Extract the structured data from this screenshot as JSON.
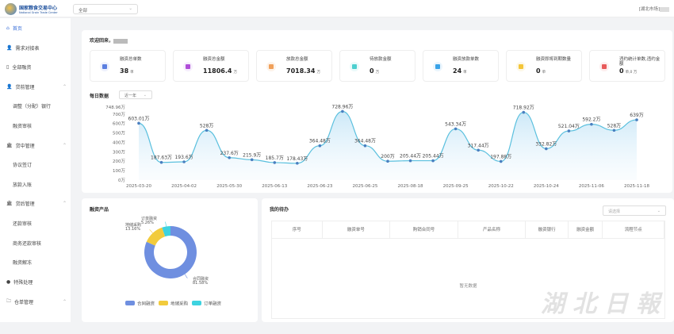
{
  "header": {
    "logo_cn": "国家粮食交易中心",
    "logo_en": "National Grain Trade Center",
    "select_value": "全部",
    "user": "[湖北市场]"
  },
  "sidebar": {
    "items": [
      {
        "label": "首页",
        "icon": "home-icon",
        "active": true
      },
      {
        "label": "需求对接表",
        "icon": "user-icon"
      },
      {
        "label": "全部融资",
        "icon": "doc-icon"
      },
      {
        "label": "贷前管理",
        "icon": "user-icon",
        "expand": true
      },
      {
        "label": "调整（分配）银行",
        "sub": true
      },
      {
        "label": "融资审核",
        "sub": true
      },
      {
        "label": "贷中管理",
        "icon": "bank-icon",
        "expand": true
      },
      {
        "label": "协议签订",
        "sub": true
      },
      {
        "label": "放款入账",
        "sub": true
      },
      {
        "label": "贷后管理",
        "icon": "bank-icon",
        "expand": true
      },
      {
        "label": "还款审核",
        "sub": true
      },
      {
        "label": "商务还款审核",
        "sub": true
      },
      {
        "label": "融资解冻",
        "sub": true
      },
      {
        "label": "特殊处理",
        "icon": "pin-icon"
      },
      {
        "label": "仓单管理",
        "icon": "folder-icon",
        "expand": true
      }
    ]
  },
  "welcome": "欢迎回来，",
  "stats": [
    {
      "label": "融资总单数",
      "value": "38",
      "unit": "单",
      "color": "#5b7fe0",
      "bg": "#eef1fd"
    },
    {
      "label": "融资总金额",
      "value": "11806.4",
      "unit": "万",
      "color": "#b04ed8",
      "bg": "#f6eefd"
    },
    {
      "label": "放款总金额",
      "value": "7018.34",
      "unit": "万",
      "color": "#f0a05a",
      "bg": "#fdf3ea"
    },
    {
      "label": "待放款金额",
      "value": "0",
      "unit": "万",
      "color": "#4ccfcf",
      "bg": "#eafafa"
    },
    {
      "label": "融资放款单数",
      "value": "24",
      "unit": "单",
      "color": "#3aa3e8",
      "bg": "#eaf5fd"
    },
    {
      "label": "融资即将到期数量",
      "value": "0",
      "unit": "单",
      "color": "#f4c63a",
      "bg": "#fdf8e8"
    },
    {
      "label": "违约统计单数,违约金额",
      "value": "0",
      "unit": "单,0 万",
      "color": "#e85a5a",
      "bg": "#fdeeee"
    }
  ],
  "daily": {
    "title": "每日数据",
    "range": "近一年"
  },
  "chart_data": [
    {
      "type": "area",
      "title": "每日数据",
      "y_unit": "万",
      "ylim": [
        0,
        748.96
      ],
      "yticks": [
        "0万",
        "100万",
        "200万",
        "300万",
        "400万",
        "500万",
        "600万",
        "700万",
        "748.96万"
      ],
      "x": [
        "2025-03-20",
        "",
        "2025-04-02",
        "",
        "2025-05-30",
        "",
        "2025-06-13",
        "",
        "2025-06-23",
        "",
        "2025-06-25",
        "",
        "2025-08-18",
        "",
        "2025-09-25",
        "",
        "2025-10-22",
        "",
        "2025-10-24",
        "",
        "2025-11-06",
        "",
        "2025-11-18"
      ],
      "values": [
        603.01,
        187.63,
        193.6,
        528,
        237.6,
        215.9,
        185.7,
        178.43,
        364.48,
        728.96,
        364.48,
        200,
        205.44,
        205.44,
        543.34,
        317.44,
        197.88,
        718.92,
        332.82,
        521.04,
        592.2,
        528,
        639
      ],
      "labels": [
        "603.01万",
        "187.63万",
        "193.6万",
        "528万",
        "237.6万",
        "215.9万",
        "185.7万",
        "178.43万",
        "364.48万",
        "728.96万",
        "364.48万",
        "200万",
        "205.44万",
        "205.44万",
        "543.34万",
        "317.44万",
        "197.88万",
        "718.92万",
        "332.82万",
        "521.04万",
        "592.2万",
        "528万",
        "639万"
      ],
      "color": "#5bc0de"
    },
    {
      "type": "pie",
      "title": "融资产品",
      "legend": "bottom",
      "slices": [
        {
          "name": "合同融资",
          "value": 81.58,
          "label": "81.58%",
          "color": "#6f8fe0"
        },
        {
          "name": "地储采购",
          "value": 13.16,
          "label": "13.16%",
          "color": "#f2cb3c"
        },
        {
          "name": "订单融资",
          "value": 5.26,
          "label": "5.26%",
          "color": "#3dd3e0"
        }
      ]
    }
  ],
  "todo": {
    "title": "我的待办",
    "select_placeholder": "请选择",
    "columns": [
      "序号",
      "融资单号",
      "购销合同号",
      "产品名称",
      "融资银行",
      "融资金额",
      "流程节点"
    ],
    "empty": "暂无数据"
  },
  "watermark": "湖北日报"
}
